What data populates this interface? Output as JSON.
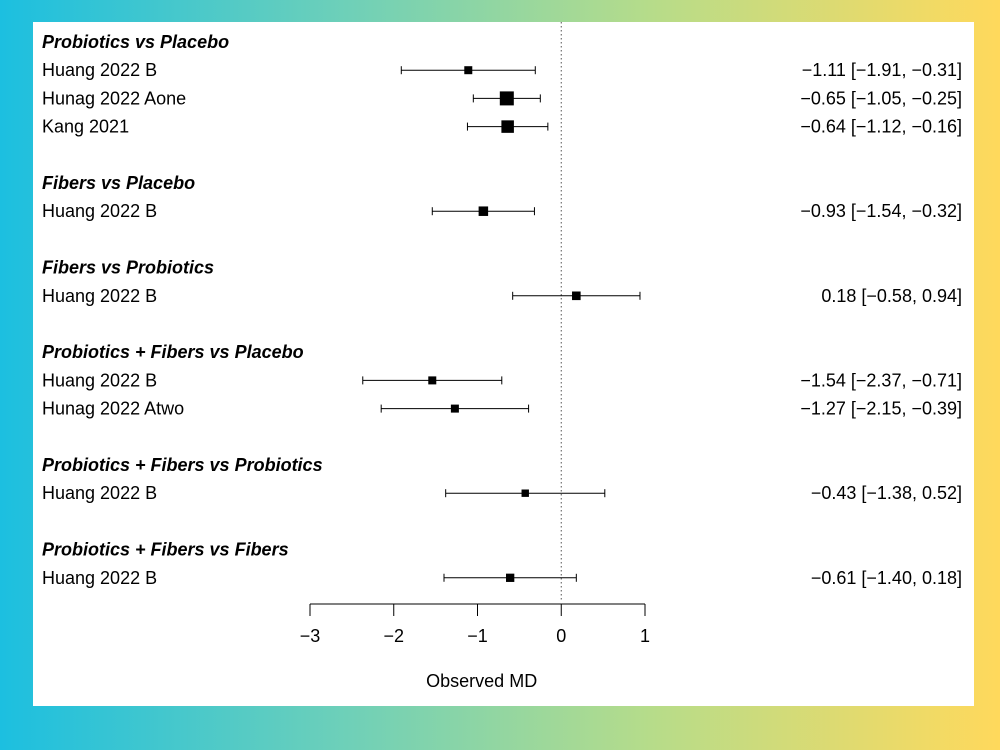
{
  "chart_data": {
    "type": "forest",
    "xlabel": "Observed  MD",
    "xlim": [
      -3,
      1
    ],
    "xticks": [
      -3,
      -2,
      -1,
      0,
      1
    ],
    "tick_labels": [
      "−3",
      "−2",
      "−1",
      "0",
      "1"
    ],
    "reference_line": 0,
    "groups": [
      {
        "title": "Probiotics vs Placebo",
        "studies": [
          {
            "label": "Huang 2022 B",
            "est": -1.11,
            "lo": -1.91,
            "hi": -0.31,
            "text": "−1.11 [−1.91, −0.31]",
            "weight": 1
          },
          {
            "label": "Hunag 2022 Aone",
            "est": -0.65,
            "lo": -1.05,
            "hi": -0.25,
            "text": "−0.65 [−1.05, −0.25]",
            "weight": 3
          },
          {
            "label": "Kang 2021",
            "est": -0.64,
            "lo": -1.12,
            "hi": -0.16,
            "text": "−0.64 [−1.12, −0.16]",
            "weight": 2.5
          }
        ]
      },
      {
        "title": "Fibers vs Placebo",
        "studies": [
          {
            "label": "Huang 2022 B",
            "est": -0.93,
            "lo": -1.54,
            "hi": -0.32,
            "text": "−0.93 [−1.54, −0.32]",
            "weight": 1.5
          }
        ]
      },
      {
        "title": "Fibers vs Probiotics",
        "studies": [
          {
            "label": "Huang 2022 B",
            "est": 0.18,
            "lo": -0.58,
            "hi": 0.94,
            "text": "0.18 [−0.58,  0.94]",
            "weight": 1.2
          }
        ]
      },
      {
        "title": "Probiotics + Fibers vs Placebo",
        "studies": [
          {
            "label": "Huang 2022 B",
            "est": -1.54,
            "lo": -2.37,
            "hi": -0.71,
            "text": "−1.54 [−2.37, −0.71]",
            "weight": 1
          },
          {
            "label": "Hunag 2022 Atwo",
            "est": -1.27,
            "lo": -2.15,
            "hi": -0.39,
            "text": "−1.27 [−2.15, −0.39]",
            "weight": 1
          }
        ]
      },
      {
        "title": "Probiotics + Fibers vs Probiotics",
        "studies": [
          {
            "label": "Huang 2022 B",
            "est": -0.43,
            "lo": -1.38,
            "hi": 0.52,
            "text": "−0.43 [−1.38,  0.52]",
            "weight": 0.8
          }
        ]
      },
      {
        "title": "Probiotics + Fibers vs Fibers",
        "studies": [
          {
            "label": "Huang 2022 B",
            "est": -0.61,
            "lo": -1.4,
            "hi": 0.18,
            "text": "−0.61 [−1.40,  0.18]",
            "weight": 1.1
          }
        ]
      }
    ]
  }
}
